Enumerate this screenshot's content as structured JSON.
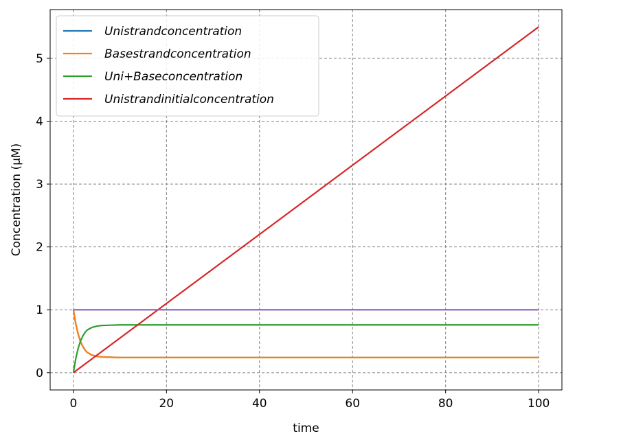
{
  "chart_data": {
    "type": "line",
    "title": "",
    "xlabel": "time",
    "ylabel": "Concentration (μM)",
    "xlim": [
      -5,
      105
    ],
    "ylim": [
      -0.275,
      5.775
    ],
    "xticks": [
      0,
      20,
      40,
      60,
      80,
      100
    ],
    "yticks": [
      0,
      1,
      2,
      3,
      4,
      5
    ],
    "grid": true,
    "legend_position": "upper-left",
    "series": [
      {
        "name": "Unistrandconcentration",
        "color": "#1f77b4",
        "x": [
          0,
          0.5,
          1,
          1.5,
          2,
          2.5,
          3,
          4,
          5,
          6,
          8,
          10,
          15,
          20,
          40,
          60,
          80,
          100
        ],
        "y": [
          1.0,
          0.78,
          0.62,
          0.5,
          0.42,
          0.36,
          0.32,
          0.28,
          0.26,
          0.25,
          0.245,
          0.24,
          0.24,
          0.24,
          0.24,
          0.24,
          0.24,
          0.24
        ]
      },
      {
        "name": "Basestrandconcentration",
        "color": "#ff7f0e",
        "x": [
          0,
          0.5,
          1,
          1.5,
          2,
          2.5,
          3,
          4,
          5,
          6,
          8,
          10,
          15,
          20,
          40,
          60,
          80,
          100
        ],
        "y": [
          1.0,
          0.78,
          0.62,
          0.5,
          0.42,
          0.36,
          0.32,
          0.28,
          0.26,
          0.25,
          0.245,
          0.24,
          0.24,
          0.24,
          0.24,
          0.24,
          0.24,
          0.24
        ]
      },
      {
        "name": "Uni+Baseconcentration",
        "color": "#2ca02c",
        "x": [
          0,
          0.5,
          1,
          1.5,
          2,
          2.5,
          3,
          4,
          5,
          6,
          8,
          10,
          15,
          20,
          40,
          60,
          80,
          100
        ],
        "y": [
          0.0,
          0.22,
          0.38,
          0.5,
          0.58,
          0.64,
          0.68,
          0.72,
          0.74,
          0.75,
          0.755,
          0.76,
          0.76,
          0.76,
          0.76,
          0.76,
          0.76,
          0.76
        ]
      },
      {
        "name": "Unistrandinitialconcentration",
        "color": "#d62728",
        "x": [
          0,
          100
        ],
        "y": [
          0,
          5.5
        ]
      },
      {
        "name": "",
        "color": "#9467bd",
        "x": [
          0,
          100
        ],
        "y": [
          1.0,
          1.0
        ]
      }
    ]
  }
}
